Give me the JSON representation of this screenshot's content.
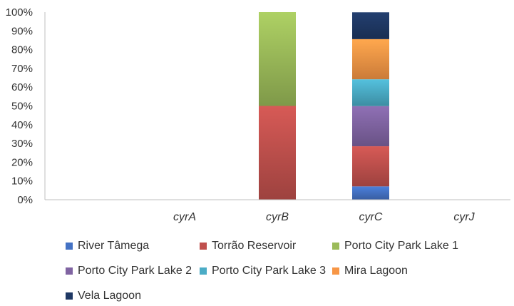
{
  "chart_data": {
    "type": "bar",
    "stacked": true,
    "normalized": true,
    "categories": [
      "cyrA",
      "cyrB",
      "cyrC",
      "cyrJ"
    ],
    "y_ticks": [
      "0%",
      "10%",
      "20%",
      "30%",
      "40%",
      "50%",
      "60%",
      "70%",
      "80%",
      "90%",
      "100%"
    ],
    "ylim": [
      0,
      100
    ],
    "grid": false,
    "legend_position": "bottom",
    "series": [
      {
        "name": "River Tâmega",
        "color": "#4472c4",
        "values": [
          0,
          0,
          7.1,
          0
        ]
      },
      {
        "name": "Torrão Reservoir",
        "color": "#c0504d",
        "values": [
          0,
          50,
          21.4,
          0
        ]
      },
      {
        "name": "Porto City Park Lake 1",
        "color": "#9bbb59",
        "values": [
          0,
          50,
          0,
          0
        ]
      },
      {
        "name": "Porto City Park Lake 2",
        "color": "#8064a2",
        "values": [
          0,
          0,
          21.4,
          0
        ]
      },
      {
        "name": "Porto City Park Lake 3",
        "color": "#4bacc6",
        "values": [
          0,
          0,
          14.3,
          0
        ]
      },
      {
        "name": "Mira Lagoon",
        "color": "#f79646",
        "values": [
          0,
          0,
          21.4,
          0
        ]
      },
      {
        "name": "Vela Lagoon",
        "color": "#1f3864",
        "values": [
          0,
          0,
          14.3,
          0
        ]
      }
    ]
  }
}
